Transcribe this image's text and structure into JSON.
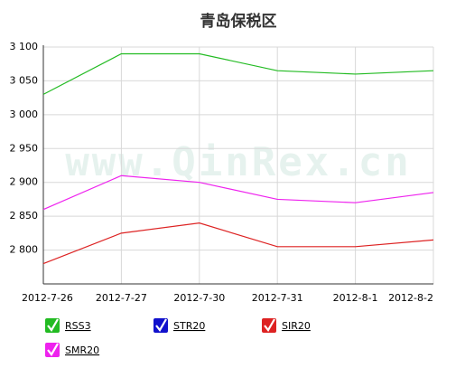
{
  "chart_data": {
    "type": "line",
    "title": "青岛保税区",
    "watermark": "www.QinRex.cn",
    "categories": [
      "2012-7-26",
      "2012-7-27",
      "2012-7-30",
      "2012-7-31",
      "2012-8-1",
      "2012-8-2"
    ],
    "series": [
      {
        "name": "RSS3",
        "color": "#22bb22",
        "values": [
          3030,
          3090,
          3090,
          3065,
          3060,
          3065
        ]
      },
      {
        "name": "STR20",
        "color": "#1111cc",
        "values": [
          null,
          null,
          null,
          null,
          null,
          null
        ]
      },
      {
        "name": "SIR20",
        "color": "#dd2222",
        "values": [
          2780,
          2825,
          2840,
          2805,
          2805,
          2815
        ]
      },
      {
        "name": "SMR20",
        "color": "#ee22ee",
        "values": [
          2860,
          2910,
          2900,
          2875,
          2870,
          2885
        ]
      }
    ],
    "ylim": [
      2750,
      3100
    ],
    "yticks": [
      {
        "value": 2800,
        "label": "2 800"
      },
      {
        "value": 2850,
        "label": "2 850"
      },
      {
        "value": 2900,
        "label": "2 900"
      },
      {
        "value": 2950,
        "label": "2 950"
      },
      {
        "value": 3000,
        "label": "3 000"
      },
      {
        "value": 3050,
        "label": "3 050"
      },
      {
        "value": 3100,
        "label": "3 100"
      }
    ],
    "grid": true
  }
}
